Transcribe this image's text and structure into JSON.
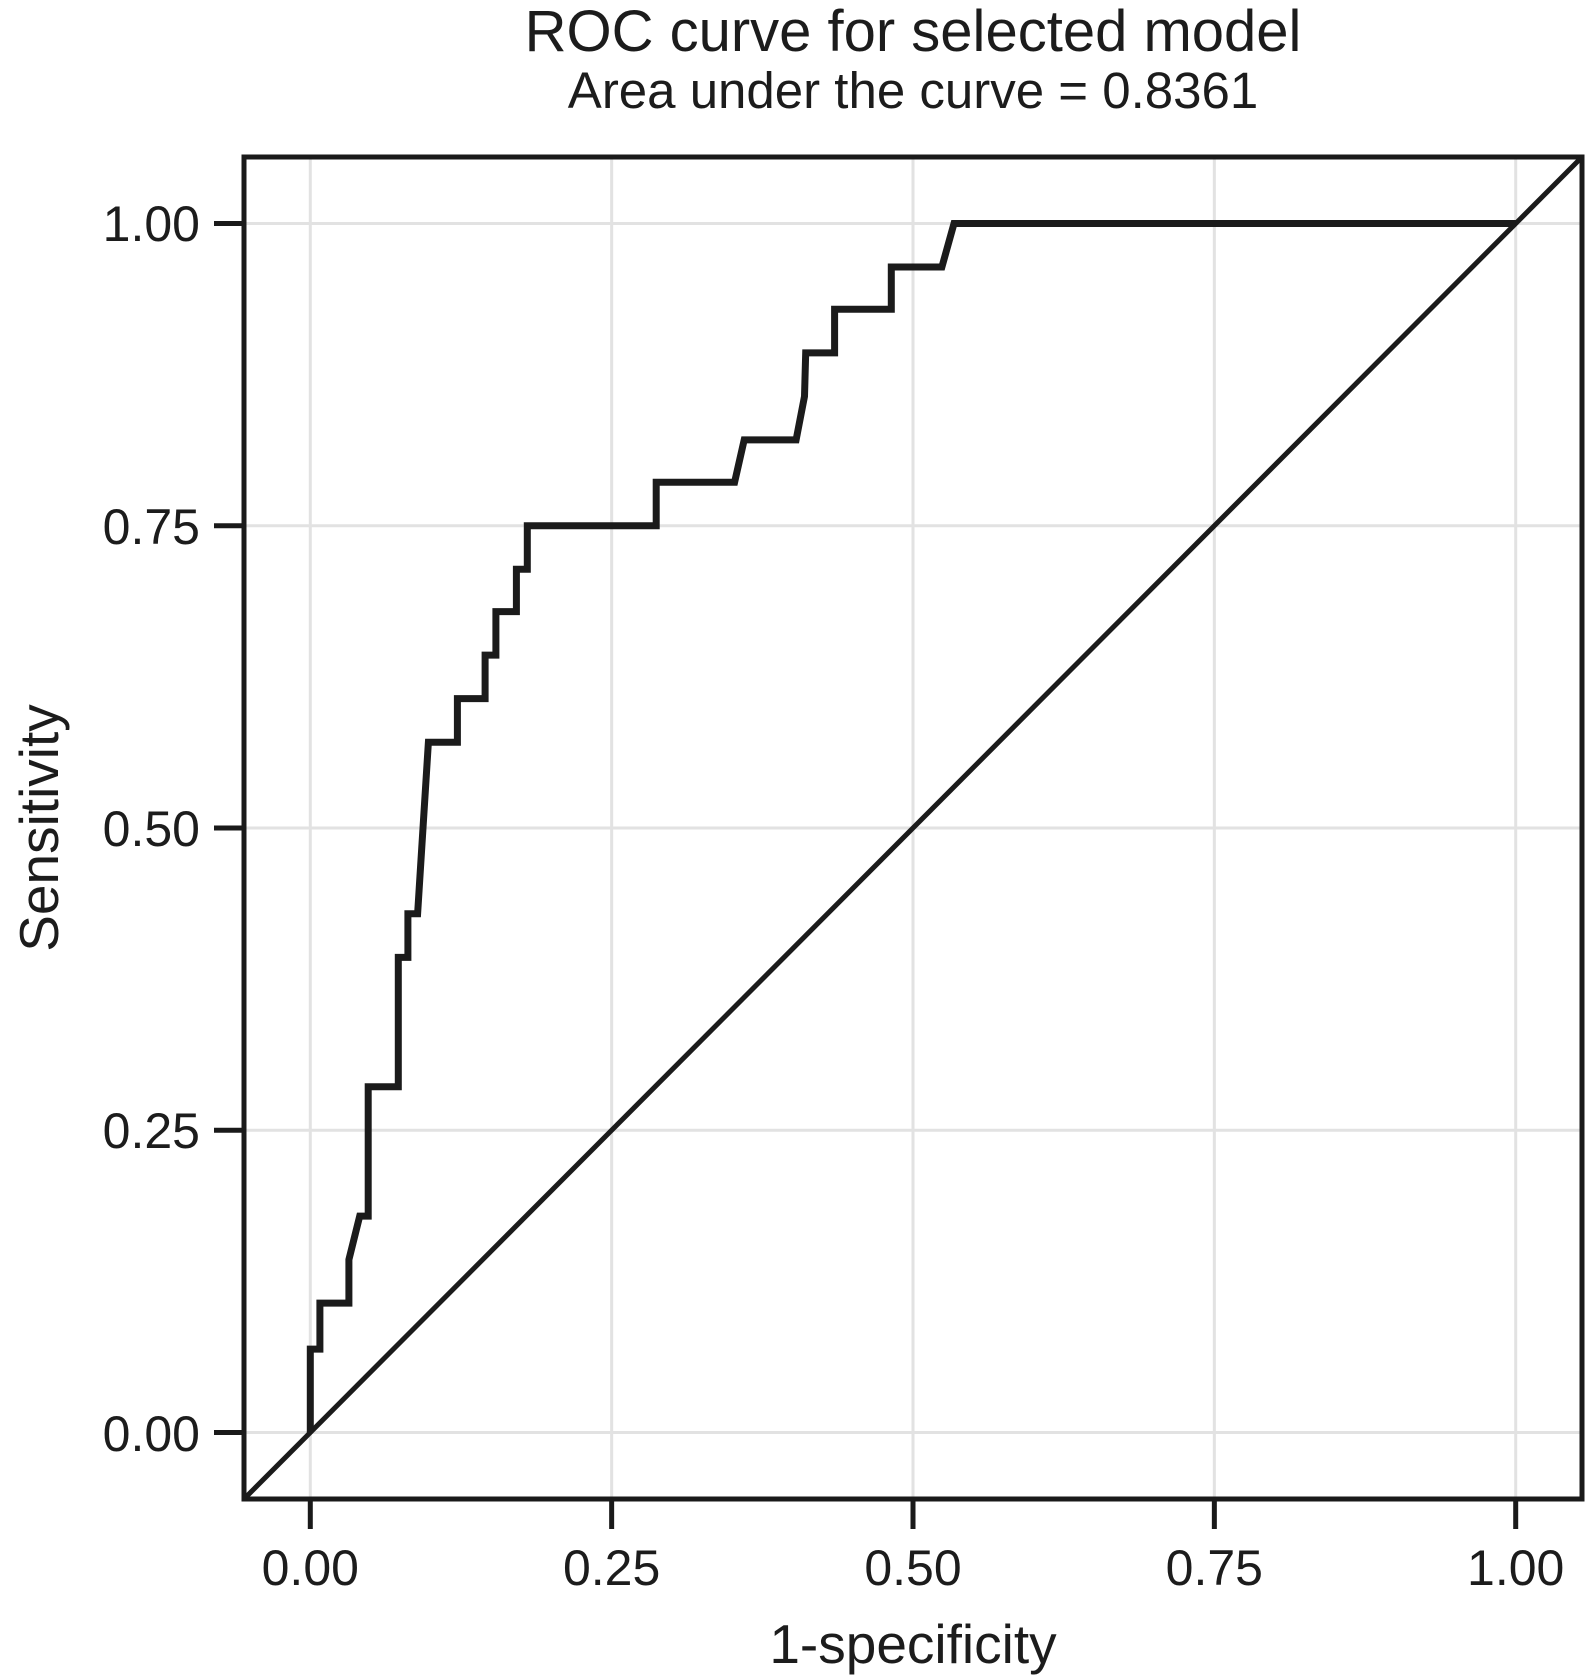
{
  "chart_data": {
    "type": "line",
    "title": "ROC curve for selected model",
    "subtitle": "Area under the curve = 0.8361",
    "auc_value": "0.8361",
    "xlabel": "1-specificity",
    "ylabel": "Sensitivity",
    "xlim": [
      -0.055,
      1.055
    ],
    "ylim": [
      -0.055,
      1.055
    ],
    "grid": true,
    "legend": "none",
    "xticks": {
      "values": [
        0,
        0.25,
        0.5,
        0.75,
        1.0
      ],
      "labels": [
        "0.00",
        "0.25",
        "0.50",
        "0.75",
        "1.00"
      ]
    },
    "yticks": {
      "values": [
        0,
        0.25,
        0.5,
        0.75,
        1.0
      ],
      "labels": [
        "0.00",
        "0.25",
        "0.50",
        "0.75",
        "1.00"
      ]
    },
    "colors": {
      "curve": "#1b1b1b",
      "diagonal": "#1b1b1b",
      "grid": "#e2e2e2",
      "frame": "#1a1a1a",
      "tick": "#1a1a1a",
      "text": "#1c1c1c",
      "background": "#ffffff"
    },
    "series": [
      {
        "name": "ROC curve",
        "style": "step",
        "points": [
          [
            0.0,
            0.0
          ],
          [
            0.0,
            0.069
          ],
          [
            0.008,
            0.069
          ],
          [
            0.008,
            0.107
          ],
          [
            0.032,
            0.107
          ],
          [
            0.032,
            0.143
          ],
          [
            0.041,
            0.179
          ],
          [
            0.048,
            0.179
          ],
          [
            0.048,
            0.286
          ],
          [
            0.073,
            0.286
          ],
          [
            0.073,
            0.393
          ],
          [
            0.081,
            0.393
          ],
          [
            0.081,
            0.429
          ],
          [
            0.089,
            0.429
          ],
          [
            0.098,
            0.571
          ],
          [
            0.122,
            0.571
          ],
          [
            0.122,
            0.607
          ],
          [
            0.145,
            0.607
          ],
          [
            0.145,
            0.643
          ],
          [
            0.154,
            0.643
          ],
          [
            0.154,
            0.679
          ],
          [
            0.171,
            0.679
          ],
          [
            0.171,
            0.714
          ],
          [
            0.18,
            0.714
          ],
          [
            0.18,
            0.75
          ],
          [
            0.287,
            0.75
          ],
          [
            0.287,
            0.786
          ],
          [
            0.352,
            0.786
          ],
          [
            0.36,
            0.821
          ],
          [
            0.403,
            0.821
          ],
          [
            0.41,
            0.857
          ],
          [
            0.411,
            0.893
          ],
          [
            0.435,
            0.893
          ],
          [
            0.435,
            0.929
          ],
          [
            0.482,
            0.929
          ],
          [
            0.482,
            0.964
          ],
          [
            0.524,
            0.964
          ],
          [
            0.534,
            1.0
          ],
          [
            1.0,
            1.0
          ]
        ]
      },
      {
        "name": "chance diagonal",
        "style": "line",
        "points": [
          [
            -0.055,
            -0.055
          ],
          [
            1.055,
            1.055
          ]
        ]
      }
    ]
  }
}
